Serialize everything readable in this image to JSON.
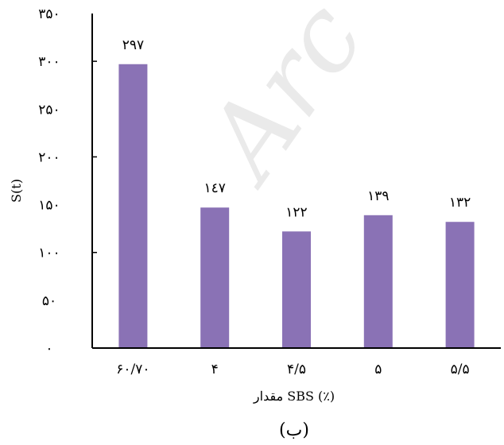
{
  "chart_data": {
    "type": "bar",
    "categories": [
      "۶۰/۷۰",
      "۴",
      "۴/۵",
      "۵",
      "۵/۵"
    ],
    "values": [
      297,
      147,
      122,
      139,
      132
    ],
    "value_labels": [
      "۲۹۷",
      "۱٤۷",
      "۱۲۲",
      "۱۳۹",
      "۱۳۲"
    ],
    "ylim": [
      0,
      350
    ],
    "yticks": [
      0,
      50,
      100,
      150,
      200,
      250,
      300,
      350
    ],
    "ytick_labels": [
      "۰",
      "۵۰",
      "۱۰۰",
      "۱۵۰",
      "۲۰۰",
      "۲۵۰",
      "۳۰۰",
      "۳۵۰"
    ],
    "xlabel": "مقدار SBS (٪)",
    "ylabel": "S(t)",
    "caption": "(ب)",
    "bar_color": "#8a72b5",
    "grid": false
  },
  "watermark_text": "Arc"
}
